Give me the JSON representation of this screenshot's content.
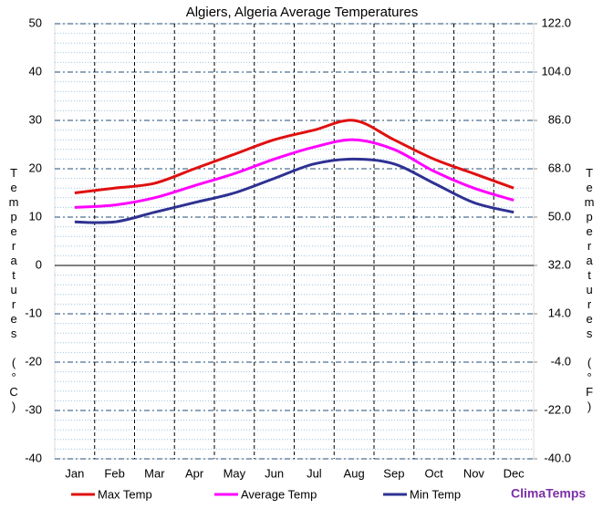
{
  "chart_data": {
    "type": "line",
    "title": "Algiers, Algeria Average Temperatures",
    "y_label": "Temperatures (°C)",
    "y2_label": "Temperatures (°F)",
    "categories": [
      "Jan",
      "Feb",
      "Mar",
      "Apr",
      "May",
      "Jun",
      "Jul",
      "Aug",
      "Sep",
      "Oct",
      "Nov",
      "Dec"
    ],
    "series": [
      {
        "name": "Max Temp",
        "color": "#e01010",
        "values": [
          15,
          16,
          17,
          20,
          23,
          26,
          28,
          30,
          26,
          22,
          19,
          16
        ]
      },
      {
        "name": "Average Temp",
        "color": "#ff00ff",
        "values": [
          12,
          12.5,
          14,
          16.5,
          19,
          22,
          24.5,
          26,
          24,
          19.5,
          16,
          13.5
        ]
      },
      {
        "name": "Min Temp",
        "color": "#2e3192",
        "values": [
          9,
          9,
          11,
          13,
          15,
          18,
          21,
          22,
          21,
          17,
          13,
          11
        ]
      }
    ],
    "ylim": [
      -40,
      50
    ],
    "yticks": [
      -40,
      -30,
      -20,
      -10,
      0,
      10,
      20,
      30,
      40,
      50
    ],
    "y2lim": [
      -40,
      122
    ],
    "y2ticks": [
      {
        "value": -40,
        "label": "-40.0"
      },
      {
        "value": -22,
        "label": "-22.0"
      },
      {
        "value": -4,
        "label": "-4.0"
      },
      {
        "value": 14,
        "label": "14.0"
      },
      {
        "value": 32,
        "label": "32.0"
      },
      {
        "value": 50,
        "label": "50.0"
      },
      {
        "value": 68,
        "label": "68.0"
      },
      {
        "value": 86,
        "label": "86.0"
      },
      {
        "value": 104,
        "label": "104.0"
      },
      {
        "value": 122,
        "label": "122.0"
      }
    ],
    "grid": true,
    "legend": "bottom",
    "brand": "ClimaTemps"
  }
}
